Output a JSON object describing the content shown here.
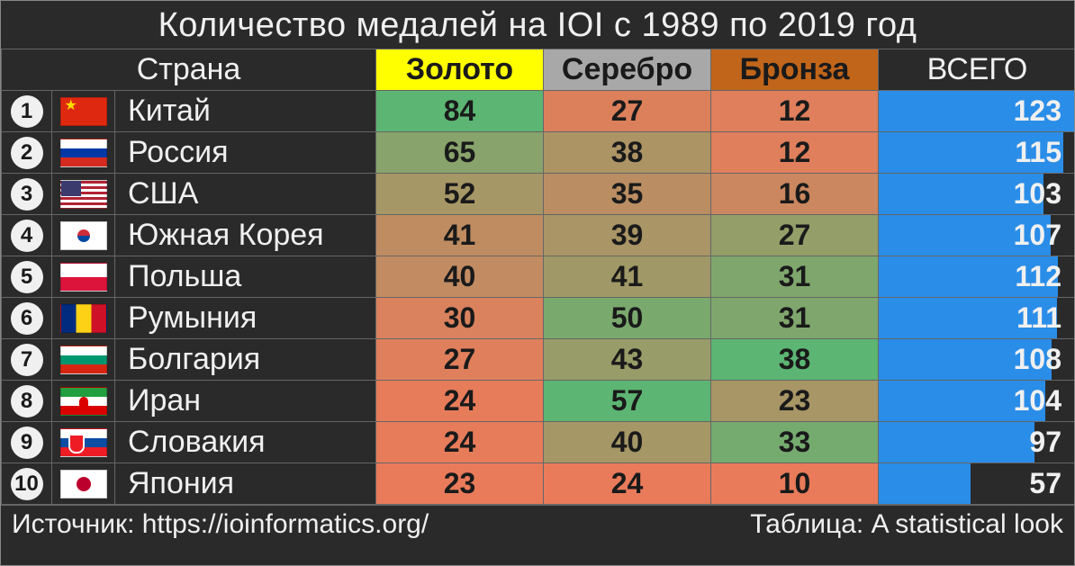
{
  "title": "Количество медалей на IOI с 1989 по 2019 год",
  "headers": {
    "country": "Страна",
    "gold": "Золото",
    "silver": "Серебро",
    "bronze": "Бронза",
    "total": "ВСЕГО"
  },
  "header_colors": {
    "gold_bg": "#ffff00",
    "silver_bg": "#a8a8a8",
    "bronze_bg": "#c0651a"
  },
  "heatmap": {
    "low_color": "#e97b5a",
    "high_color": "#5cb573"
  },
  "total_bar": {
    "color": "#2a8de8",
    "max": 123
  },
  "medal_ranges": {
    "gold": {
      "min": 23,
      "max": 84
    },
    "silver": {
      "min": 24,
      "max": 57
    },
    "bronze": {
      "min": 10,
      "max": 38
    }
  },
  "rows": [
    {
      "rank": 1,
      "flag": "cn",
      "country": "Китай",
      "gold": 84,
      "silver": 27,
      "bronze": 12,
      "total": 123
    },
    {
      "rank": 2,
      "flag": "ru",
      "country": "Россия",
      "gold": 65,
      "silver": 38,
      "bronze": 12,
      "total": 115
    },
    {
      "rank": 3,
      "flag": "us",
      "country": "США",
      "gold": 52,
      "silver": 35,
      "bronze": 16,
      "total": 103
    },
    {
      "rank": 4,
      "flag": "kr",
      "country": "Южная Корея",
      "gold": 41,
      "silver": 39,
      "bronze": 27,
      "total": 107
    },
    {
      "rank": 5,
      "flag": "pl",
      "country": "Польша",
      "gold": 40,
      "silver": 41,
      "bronze": 31,
      "total": 112
    },
    {
      "rank": 6,
      "flag": "ro",
      "country": "Румыния",
      "gold": 30,
      "silver": 50,
      "bronze": 31,
      "total": 111
    },
    {
      "rank": 7,
      "flag": "bg",
      "country": "Болгария",
      "gold": 27,
      "silver": 43,
      "bronze": 38,
      "total": 108
    },
    {
      "rank": 8,
      "flag": "ir",
      "country": "Иран",
      "gold": 24,
      "silver": 57,
      "bronze": 23,
      "total": 104
    },
    {
      "rank": 9,
      "flag": "sk",
      "country": "Словакия",
      "gold": 24,
      "silver": 40,
      "bronze": 33,
      "total": 97
    },
    {
      "rank": 10,
      "flag": "jp",
      "country": "Япония",
      "gold": 23,
      "silver": 24,
      "bronze": 10,
      "total": 57
    }
  ],
  "footer": {
    "source": "Источник: https://ioinformatics.org/",
    "credit": "Таблица: A statistical look"
  },
  "styling": {
    "background": "#2a2a2a",
    "text_color": "#f0f0f0",
    "border_color": "#666666",
    "title_fontsize": 38,
    "header_fontsize": 34,
    "cell_fontsize": 32
  }
}
